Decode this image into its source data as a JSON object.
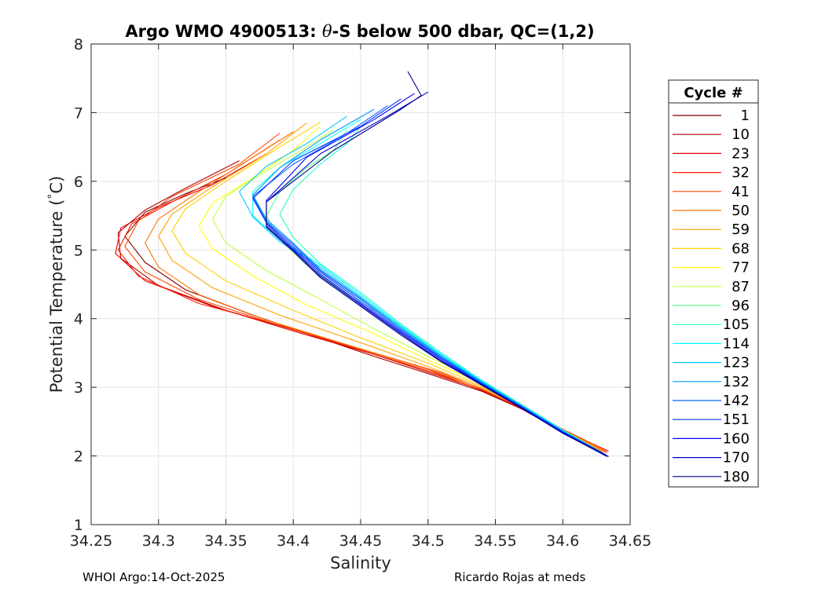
{
  "chart_data": {
    "type": "line",
    "title_parts": [
      "Argo WMO 4900513: ",
      "θ",
      "-S below 500 dbar,  QC=(1,2)"
    ],
    "xlabel": "Salinity",
    "ylabel_parts": [
      "Potential Temperature (",
      "°",
      "C)"
    ],
    "xlim": [
      34.25,
      34.65
    ],
    "ylim": [
      1,
      8
    ],
    "xticks": [
      "34.25",
      "34.3",
      "34.35",
      "34.4",
      "34.45",
      "34.5",
      "34.55",
      "34.6",
      "34.65"
    ],
    "yticks": [
      "1",
      "2",
      "3",
      "4",
      "5",
      "6",
      "7",
      "8"
    ],
    "grid": true,
    "legend_title": "Cycle #",
    "legend_position": "outside-right",
    "series": [
      {
        "name": "1",
        "color": "#800000",
        "points": [
          [
            34.633,
            2.05
          ],
          [
            34.6,
            2.35
          ],
          [
            34.57,
            2.68
          ],
          [
            34.54,
            2.95
          ],
          [
            34.51,
            3.18
          ],
          [
            34.47,
            3.42
          ],
          [
            34.42,
            3.72
          ],
          [
            34.37,
            4.05
          ],
          [
            34.32,
            4.42
          ],
          [
            34.29,
            4.82
          ],
          [
            34.275,
            5.2
          ],
          [
            34.29,
            5.55
          ],
          [
            34.32,
            5.82
          ],
          [
            34.35,
            6.05
          ]
        ]
      },
      {
        "name": "10",
        "color": "#b30000",
        "points": [
          [
            34.632,
            2.06
          ],
          [
            34.6,
            2.36
          ],
          [
            34.57,
            2.68
          ],
          [
            34.54,
            2.94
          ],
          [
            34.5,
            3.2
          ],
          [
            34.46,
            3.45
          ],
          [
            34.41,
            3.78
          ],
          [
            34.35,
            4.12
          ],
          [
            34.3,
            4.48
          ],
          [
            34.272,
            4.88
          ],
          [
            34.27,
            5.25
          ],
          [
            34.29,
            5.58
          ],
          [
            34.32,
            5.9
          ],
          [
            34.36,
            6.3
          ]
        ]
      },
      {
        "name": "23",
        "color": "#e00000",
        "points": [
          [
            34.634,
            2.07
          ],
          [
            34.6,
            2.38
          ],
          [
            34.57,
            2.69
          ],
          [
            34.54,
            2.96
          ],
          [
            34.5,
            3.22
          ],
          [
            34.46,
            3.48
          ],
          [
            34.4,
            3.82
          ],
          [
            34.34,
            4.18
          ],
          [
            34.29,
            4.55
          ],
          [
            34.268,
            4.95
          ],
          [
            34.272,
            5.32
          ],
          [
            34.3,
            5.62
          ],
          [
            34.34,
            5.95
          ],
          [
            34.38,
            6.4
          ]
        ]
      },
      {
        "name": "32",
        "color": "#ff1a00",
        "points": [
          [
            34.633,
            2.05
          ],
          [
            34.6,
            2.37
          ],
          [
            34.57,
            2.7
          ],
          [
            34.54,
            2.97
          ],
          [
            34.51,
            3.21
          ],
          [
            34.46,
            3.5
          ],
          [
            34.4,
            3.85
          ],
          [
            34.33,
            4.22
          ],
          [
            34.285,
            4.62
          ],
          [
            34.27,
            5.0
          ],
          [
            34.28,
            5.38
          ],
          [
            34.31,
            5.7
          ],
          [
            34.35,
            6.1
          ],
          [
            34.39,
            6.6
          ]
        ]
      },
      {
        "name": "41",
        "color": "#ff4500",
        "points": [
          [
            34.632,
            2.08
          ],
          [
            34.6,
            2.39
          ],
          [
            34.57,
            2.7
          ],
          [
            34.54,
            2.96
          ],
          [
            34.5,
            3.24
          ],
          [
            34.45,
            3.55
          ],
          [
            34.39,
            3.9
          ],
          [
            34.33,
            4.28
          ],
          [
            34.29,
            4.68
          ],
          [
            34.275,
            5.05
          ],
          [
            34.285,
            5.42
          ],
          [
            34.31,
            5.78
          ],
          [
            34.36,
            6.25
          ],
          [
            34.39,
            6.7
          ]
        ]
      },
      {
        "name": "50",
        "color": "#ff7400",
        "points": [
          [
            34.631,
            2.07
          ],
          [
            34.6,
            2.38
          ],
          [
            34.57,
            2.7
          ],
          [
            34.54,
            2.98
          ],
          [
            34.5,
            3.26
          ],
          [
            34.44,
            3.62
          ],
          [
            34.38,
            3.98
          ],
          [
            34.33,
            4.35
          ],
          [
            34.3,
            4.75
          ],
          [
            34.29,
            5.1
          ],
          [
            34.3,
            5.45
          ],
          [
            34.33,
            5.85
          ],
          [
            34.37,
            6.35
          ],
          [
            34.4,
            6.72
          ]
        ]
      },
      {
        "name": "59",
        "color": "#ffa200",
        "points": [
          [
            34.63,
            2.06
          ],
          [
            34.6,
            2.38
          ],
          [
            34.57,
            2.71
          ],
          [
            34.54,
            3.0
          ],
          [
            34.5,
            3.3
          ],
          [
            34.45,
            3.65
          ],
          [
            34.39,
            4.05
          ],
          [
            34.34,
            4.45
          ],
          [
            34.31,
            4.85
          ],
          [
            34.3,
            5.2
          ],
          [
            34.31,
            5.52
          ],
          [
            34.34,
            5.92
          ],
          [
            34.38,
            6.4
          ],
          [
            34.41,
            6.85
          ]
        ]
      },
      {
        "name": "68",
        "color": "#ffd000",
        "points": [
          [
            34.629,
            2.06
          ],
          [
            34.6,
            2.38
          ],
          [
            34.57,
            2.72
          ],
          [
            34.54,
            3.02
          ],
          [
            34.5,
            3.35
          ],
          [
            34.45,
            3.72
          ],
          [
            34.4,
            4.12
          ],
          [
            34.35,
            4.55
          ],
          [
            34.32,
            4.95
          ],
          [
            34.31,
            5.28
          ],
          [
            34.32,
            5.6
          ],
          [
            34.35,
            6.0
          ],
          [
            34.39,
            6.5
          ],
          [
            34.42,
            6.86
          ]
        ]
      },
      {
        "name": "77",
        "color": "#ffff00",
        "points": [
          [
            34.628,
            2.05
          ],
          [
            34.6,
            2.37
          ],
          [
            34.57,
            2.72
          ],
          [
            34.54,
            3.05
          ],
          [
            34.5,
            3.4
          ],
          [
            34.46,
            3.78
          ],
          [
            34.41,
            4.2
          ],
          [
            34.37,
            4.62
          ],
          [
            34.34,
            5.02
          ],
          [
            34.33,
            5.35
          ],
          [
            34.34,
            5.68
          ],
          [
            34.37,
            6.05
          ],
          [
            34.4,
            6.45
          ],
          [
            34.42,
            6.8
          ]
        ]
      },
      {
        "name": "87",
        "color": "#c0ff40",
        "points": [
          [
            34.628,
            2.06
          ],
          [
            34.6,
            2.38
          ],
          [
            34.57,
            2.73
          ],
          [
            34.54,
            3.07
          ],
          [
            34.5,
            3.45
          ],
          [
            34.46,
            3.85
          ],
          [
            34.42,
            4.28
          ],
          [
            34.38,
            4.7
          ],
          [
            34.35,
            5.1
          ],
          [
            34.34,
            5.45
          ],
          [
            34.35,
            5.78
          ],
          [
            34.38,
            6.15
          ],
          [
            34.41,
            6.5
          ],
          [
            34.43,
            6.75
          ]
        ]
      },
      {
        "name": "96",
        "color": "#60ff90",
        "points": [
          [
            34.628,
            2.05
          ],
          [
            34.6,
            2.38
          ],
          [
            34.57,
            2.74
          ],
          [
            34.54,
            3.1
          ],
          [
            34.51,
            3.48
          ],
          [
            34.48,
            3.9
          ],
          [
            34.44,
            4.35
          ],
          [
            34.41,
            4.78
          ],
          [
            34.39,
            5.15
          ],
          [
            34.38,
            5.5
          ],
          [
            34.39,
            5.85
          ],
          [
            34.41,
            6.2
          ],
          [
            34.43,
            6.45
          ],
          [
            34.44,
            6.75
          ]
        ]
      },
      {
        "name": "105",
        "color": "#20ffc8",
        "points": [
          [
            34.629,
            2.05
          ],
          [
            34.6,
            2.38
          ],
          [
            34.57,
            2.74
          ],
          [
            34.54,
            3.1
          ],
          [
            34.51,
            3.5
          ],
          [
            34.48,
            3.92
          ],
          [
            34.45,
            4.38
          ],
          [
            34.42,
            4.8
          ],
          [
            34.4,
            5.18
          ],
          [
            34.39,
            5.52
          ],
          [
            34.4,
            5.88
          ],
          [
            34.42,
            6.25
          ],
          [
            34.44,
            6.55
          ],
          [
            34.45,
            6.8
          ]
        ]
      },
      {
        "name": "114",
        "color": "#00ffff",
        "points": [
          [
            34.629,
            2.04
          ],
          [
            34.6,
            2.37
          ],
          [
            34.57,
            2.73
          ],
          [
            34.54,
            3.09
          ],
          [
            34.51,
            3.48
          ],
          [
            34.48,
            3.9
          ],
          [
            34.45,
            4.35
          ],
          [
            34.42,
            4.78
          ],
          [
            34.39,
            5.15
          ],
          [
            34.37,
            5.5
          ],
          [
            34.37,
            5.85
          ],
          [
            34.39,
            6.2
          ],
          [
            34.42,
            6.55
          ],
          [
            34.45,
            6.9
          ]
        ]
      },
      {
        "name": "123",
        "color": "#00c8ff",
        "points": [
          [
            34.63,
            2.04
          ],
          [
            34.6,
            2.37
          ],
          [
            34.57,
            2.73
          ],
          [
            34.54,
            3.08
          ],
          [
            34.51,
            3.46
          ],
          [
            34.48,
            3.88
          ],
          [
            34.45,
            4.32
          ],
          [
            34.42,
            4.75
          ],
          [
            34.39,
            5.12
          ],
          [
            34.37,
            5.48
          ],
          [
            34.36,
            5.85
          ],
          [
            34.38,
            6.22
          ],
          [
            34.41,
            6.55
          ],
          [
            34.44,
            6.95
          ]
        ]
      },
      {
        "name": "132",
        "color": "#0096ff",
        "points": [
          [
            34.631,
            2.03
          ],
          [
            34.6,
            2.36
          ],
          [
            34.57,
            2.72
          ],
          [
            34.54,
            3.07
          ],
          [
            34.51,
            3.45
          ],
          [
            34.48,
            3.86
          ],
          [
            34.45,
            4.3
          ],
          [
            34.42,
            4.72
          ],
          [
            34.4,
            5.1
          ],
          [
            34.38,
            5.45
          ],
          [
            34.37,
            5.8
          ],
          [
            34.39,
            6.2
          ],
          [
            34.42,
            6.6
          ],
          [
            34.46,
            7.05
          ]
        ]
      },
      {
        "name": "142",
        "color": "#0064ff",
        "points": [
          [
            34.632,
            2.02
          ],
          [
            34.6,
            2.35
          ],
          [
            34.57,
            2.71
          ],
          [
            34.54,
            3.06
          ],
          [
            34.51,
            3.43
          ],
          [
            34.48,
            3.84
          ],
          [
            34.45,
            4.28
          ],
          [
            34.42,
            4.7
          ],
          [
            34.4,
            5.08
          ],
          [
            34.38,
            5.42
          ],
          [
            34.37,
            5.78
          ],
          [
            34.4,
            6.25
          ],
          [
            34.44,
            6.7
          ],
          [
            34.47,
            7.1
          ]
        ]
      },
      {
        "name": "151",
        "color": "#0032ff",
        "points": [
          [
            34.632,
            2.01
          ],
          [
            34.6,
            2.35
          ],
          [
            34.57,
            2.7
          ],
          [
            34.54,
            3.05
          ],
          [
            34.51,
            3.42
          ],
          [
            34.48,
            3.82
          ],
          [
            34.45,
            4.25
          ],
          [
            34.42,
            4.68
          ],
          [
            34.4,
            5.05
          ],
          [
            34.38,
            5.4
          ],
          [
            34.37,
            5.75
          ],
          [
            34.4,
            6.3
          ],
          [
            34.45,
            6.8
          ],
          [
            34.48,
            7.2
          ]
        ]
      },
      {
        "name": "160",
        "color": "#0000ff",
        "points": [
          [
            34.633,
            2.0
          ],
          [
            34.6,
            2.34
          ],
          [
            34.57,
            2.7
          ],
          [
            34.54,
            3.04
          ],
          [
            34.51,
            3.4
          ],
          [
            34.48,
            3.8
          ],
          [
            34.45,
            4.22
          ],
          [
            34.42,
            4.65
          ],
          [
            34.4,
            5.02
          ],
          [
            34.38,
            5.38
          ],
          [
            34.38,
            5.72
          ],
          [
            34.41,
            6.35
          ],
          [
            34.46,
            6.9
          ],
          [
            34.49,
            7.28
          ]
        ]
      },
      {
        "name": "170",
        "color": "#0000c8",
        "points": [
          [
            34.633,
            1.99
          ],
          [
            34.6,
            2.33
          ],
          [
            34.57,
            2.69
          ],
          [
            34.54,
            3.03
          ],
          [
            34.51,
            3.38
          ],
          [
            34.48,
            3.78
          ],
          [
            34.45,
            4.2
          ],
          [
            34.42,
            4.62
          ],
          [
            34.4,
            5.0
          ],
          [
            34.38,
            5.35
          ],
          [
            34.38,
            5.7
          ],
          [
            34.42,
            6.4
          ],
          [
            34.47,
            6.95
          ],
          [
            34.5,
            7.3
          ]
        ]
      },
      {
        "name": "180",
        "color": "#00008c",
        "points": [
          [
            34.634,
            1.99
          ],
          [
            34.6,
            2.33
          ],
          [
            34.57,
            2.69
          ],
          [
            34.54,
            3.03
          ],
          [
            34.51,
            3.37
          ],
          [
            34.48,
            3.76
          ],
          [
            34.45,
            4.18
          ],
          [
            34.42,
            4.6
          ],
          [
            34.4,
            4.98
          ],
          [
            34.38,
            5.33
          ],
          [
            34.38,
            5.7
          ],
          [
            34.43,
            6.45
          ],
          [
            34.48,
            7.05
          ],
          [
            34.495,
            7.25
          ],
          [
            34.485,
            7.6
          ]
        ]
      }
    ]
  },
  "footer": {
    "left": "WHOI Argo:14-Oct-2025",
    "right": "Ricardo Rojas at meds"
  }
}
